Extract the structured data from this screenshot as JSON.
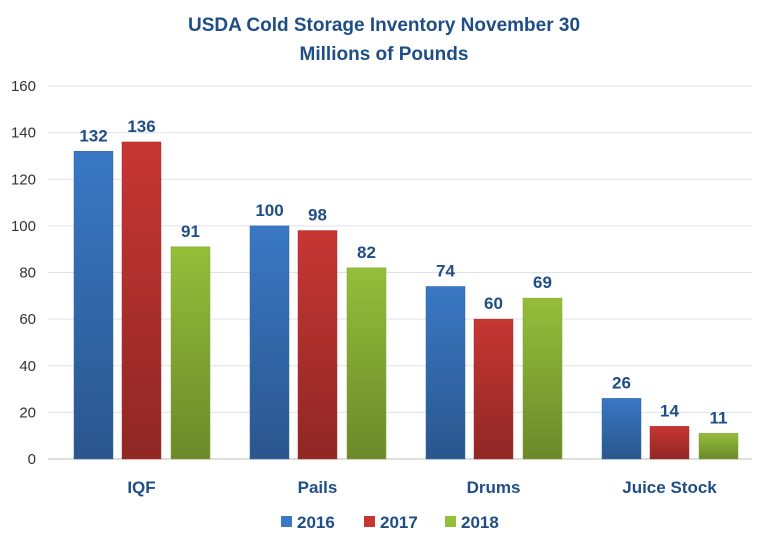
{
  "chart_data": {
    "type": "bar",
    "title": "USDA Cold Storage Inventory November 30",
    "subtitle": "Millions of Pounds",
    "categories": [
      "IQF",
      "Pails",
      "Drums",
      "Juice Stock"
    ],
    "series": [
      {
        "name": "2016",
        "values": [
          132,
          100,
          74,
          26
        ],
        "color": "#3a78c4"
      },
      {
        "name": "2017",
        "values": [
          136,
          98,
          60,
          14
        ],
        "color": "#c73633"
      },
      {
        "name": "2018",
        "values": [
          91,
          82,
          69,
          11
        ],
        "color": "#95be3a"
      }
    ],
    "yticks": [
      0,
      20,
      40,
      60,
      80,
      100,
      120,
      140,
      160
    ],
    "ylim": [
      0,
      160
    ],
    "grid": true,
    "legend": "bottom",
    "data_labels": true
  }
}
